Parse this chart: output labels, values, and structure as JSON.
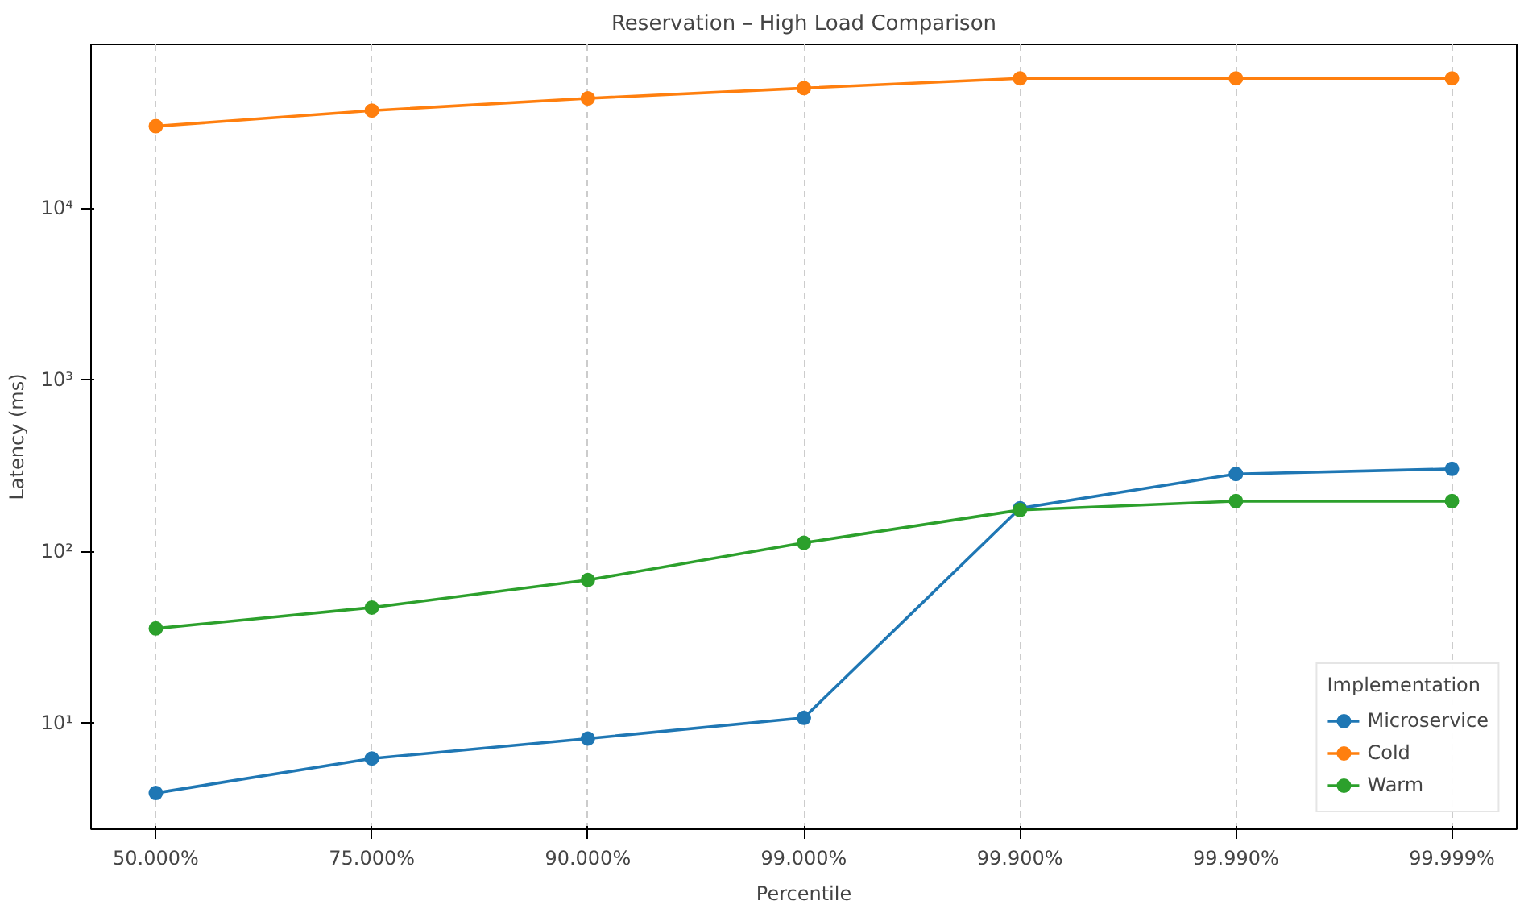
{
  "chart_data": {
    "type": "line",
    "title": "Reservation – High Load Comparison",
    "xlabel": "Percentile",
    "ylabel": "Latency (ms)",
    "legend_title": "Implementation",
    "categories": [
      "50.000%",
      "75.000%",
      "90.000%",
      "99.000%",
      "99.900%",
      "99.990%",
      "99.999%"
    ],
    "series": [
      {
        "name": "Microservice",
        "color": "#1f77b4",
        "values": [
          3.9,
          6.2,
          8.1,
          10.7,
          178,
          282,
          302
        ]
      },
      {
        "name": "Cold",
        "color": "#ff7f0e",
        "values": [
          30000,
          37000,
          43600,
          50000,
          57000,
          57000,
          57000
        ]
      },
      {
        "name": "Warm",
        "color": "#2ca02c",
        "values": [
          35.5,
          47,
          68,
          112,
          174,
          196,
          196
        ]
      }
    ],
    "log": "y",
    "ylim": [
      2.4,
      90000
    ],
    "yticks": [
      {
        "value": 10,
        "label": "10¹"
      },
      {
        "value": 100,
        "label": "10²"
      },
      {
        "value": 1000,
        "label": "10³"
      },
      {
        "value": 10000,
        "label": "10⁴"
      }
    ],
    "grid": "x",
    "legend": "bottom right",
    "marker": "circle",
    "line_style": "solid"
  }
}
